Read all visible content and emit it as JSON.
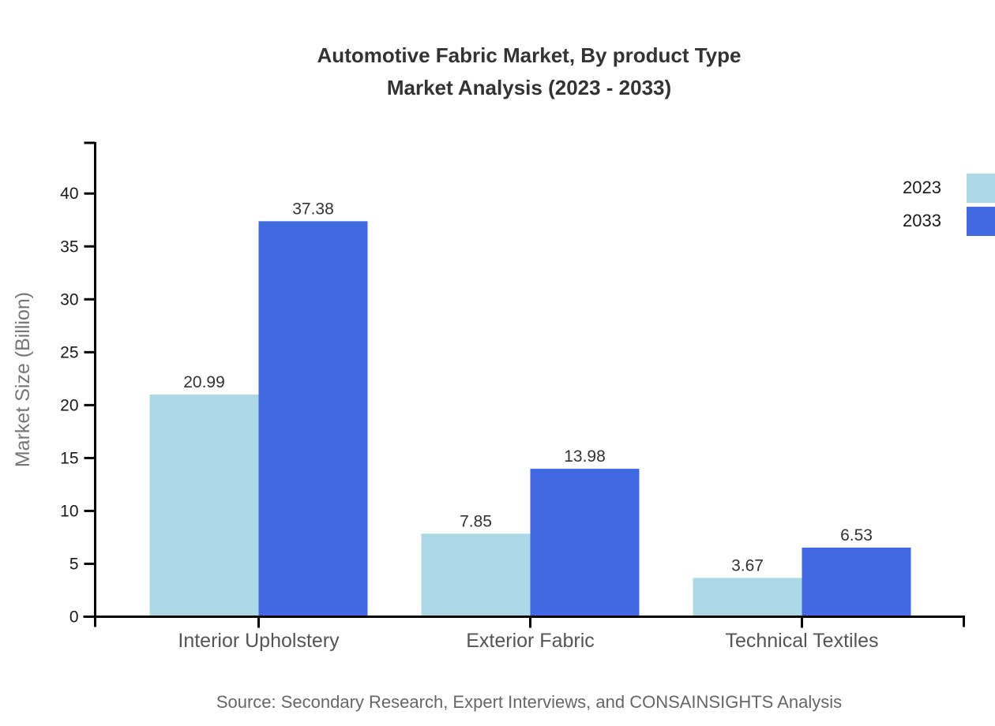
{
  "title": {
    "line1": "Automotive Fabric Market, By product Type",
    "line2": "Market Analysis (2023 - 2033)"
  },
  "source": "Source: Secondary Research, Expert Interviews, and CONSAINSIGHTS Analysis",
  "chart_data": {
    "type": "bar",
    "categories": [
      "Interior Upholstery",
      "Exterior Fabric",
      "Technical Textiles"
    ],
    "series": [
      {
        "name": "2023",
        "color": "#ADD8E6",
        "values": [
          20.99,
          7.85,
          3.67
        ]
      },
      {
        "name": "2033",
        "color": "#4169E1",
        "values": [
          37.38,
          13.98,
          6.53
        ]
      }
    ],
    "value_labels": [
      "20.99",
      "37.38",
      "7.85",
      "13.98",
      "3.67",
      "6.53"
    ],
    "title": "Automotive Fabric Market, By product Type Market Analysis (2023 - 2033)",
    "xlabel": "",
    "ylabel": "Market Size (Billion)",
    "ylim": [
      0,
      45
    ],
    "yticks": [
      0,
      5,
      10,
      15,
      20,
      25,
      30,
      35,
      40
    ],
    "grid": false,
    "legend_position": "top-right"
  },
  "colors": {
    "axis": "#000000",
    "tick_label": "#1a1a1a",
    "category_label": "#555555",
    "ylabel": "#777777",
    "value_label": "#333333",
    "title": "#333333",
    "source": "#666666",
    "background": "#ffffff"
  }
}
